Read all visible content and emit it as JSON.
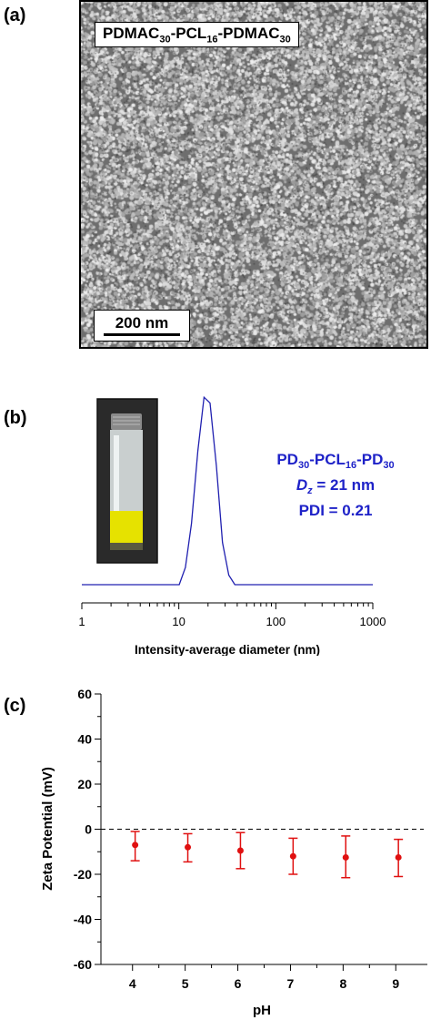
{
  "panel_a": {
    "label": "(a)",
    "sample_prefix": "PDMAC",
    "sample_sub1": "30",
    "sample_mid": "-PCL",
    "sample_sub2": "16",
    "sample_mid2": "-PDMAC",
    "sample_sub3": "30",
    "scale_bar": "200 nm"
  },
  "panel_b": {
    "label": "(b)",
    "legend": {
      "line1": {
        "a": "PD",
        "b": "30",
        "c": "-PCL",
        "d": "16",
        "e": "-PD",
        "f": "30"
      },
      "line2": {
        "sym": "D",
        "sub": "z",
        "rest": " = 21 nm"
      },
      "line3": "PDI = 0.21"
    },
    "vial_icon": "vial-photo"
  },
  "panel_c": {
    "label": "(c)"
  },
  "chart_data": [
    {
      "type": "line",
      "title": "",
      "xlabel": "Intensity-average diameter (nm)",
      "ylabel": "",
      "xscale": "log",
      "xlim": [
        1,
        1000
      ],
      "xticks": [
        1,
        10,
        100,
        1000
      ],
      "xtick_labels": [
        "1",
        "10",
        "100",
        "1000"
      ],
      "color": "#2020b0",
      "series": [
        {
          "x": [
            1,
            10.1,
            11.7,
            13.5,
            15.7,
            18.2,
            21.0,
            24.4,
            28.2,
            32.7,
            37.8,
            1000
          ],
          "y": [
            0,
            0,
            0.09,
            0.32,
            0.7,
            0.98,
            0.95,
            0.62,
            0.22,
            0.05,
            0,
            0
          ]
        }
      ]
    },
    {
      "type": "scatter",
      "title": "",
      "xlabel": "pH",
      "ylabel": "Zeta Potential (mV)",
      "xlim": [
        3.4,
        9.6
      ],
      "ylim": [
        -60,
        60
      ],
      "xticks": [
        4,
        5,
        6,
        7,
        8,
        9
      ],
      "yticks": [
        -60,
        -40,
        -20,
        0,
        20,
        40,
        60
      ],
      "reference_line": 0,
      "color": "#e01010",
      "series": [
        {
          "x": [
            4.05,
            5.05,
            6.05,
            7.05,
            8.05,
            9.05
          ],
          "y": [
            -7,
            -8,
            -9.5,
            -12,
            -12.5,
            -12.5
          ],
          "err_low": [
            -14,
            -14.5,
            -17.5,
            -20,
            -21.5,
            -21
          ],
          "err_high": [
            -1,
            -2,
            -1.5,
            -4,
            -3,
            -4.5
          ]
        }
      ]
    }
  ]
}
